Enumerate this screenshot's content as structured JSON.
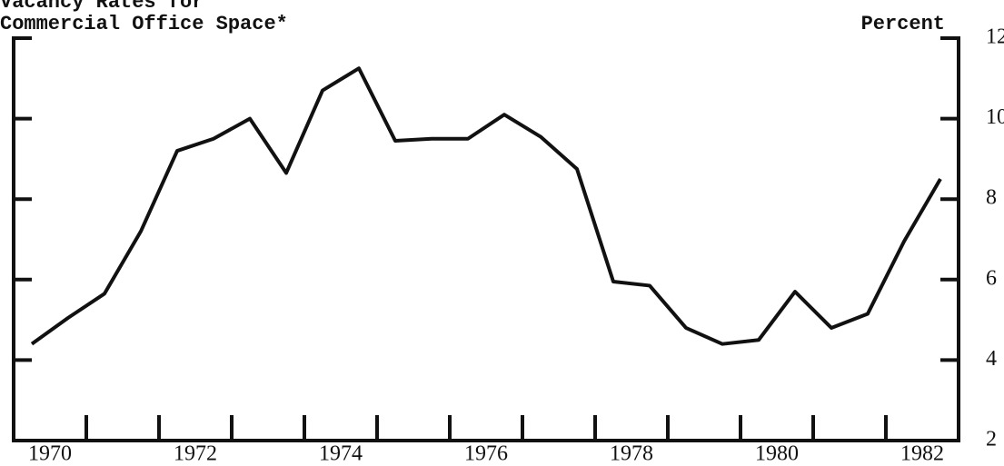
{
  "chart_data": {
    "type": "line",
    "title_lines": [
      "Vacancy Rates for",
      "Commercial Office Space*"
    ],
    "y_axis_label": "Percent",
    "x": [
      1970.25,
      1970.75,
      1971.25,
      1971.75,
      1972.25,
      1972.75,
      1973.25,
      1973.75,
      1974.25,
      1974.75,
      1975.25,
      1975.75,
      1976.25,
      1976.75,
      1977.25,
      1977.75,
      1978.25,
      1978.75,
      1979.25,
      1979.75,
      1980.25,
      1980.75,
      1981.25,
      1981.75,
      1982.25,
      1982.75
    ],
    "series": [
      {
        "name": "Vacancy rate",
        "color": "#111111",
        "values": [
          4.4,
          5.05,
          5.65,
          7.2,
          9.2,
          9.5,
          10.0,
          8.65,
          10.7,
          11.25,
          9.45,
          9.5,
          9.5,
          10.1,
          9.55,
          8.75,
          5.95,
          5.85,
          4.8,
          4.4,
          4.5,
          5.7,
          4.8,
          5.15,
          6.95,
          8.5
        ]
      }
    ],
    "xlim": [
      1970,
      1983
    ],
    "xticks": [
      1971,
      1972,
      1973,
      1974,
      1975,
      1976,
      1977,
      1978,
      1979,
      1980,
      1981,
      1982
    ],
    "xlabels": [
      1970,
      1972,
      1974,
      1976,
      1978,
      1980,
      1982
    ],
    "ylim": [
      2,
      12
    ],
    "yticks": [
      2,
      4,
      6,
      8,
      10,
      12
    ]
  }
}
